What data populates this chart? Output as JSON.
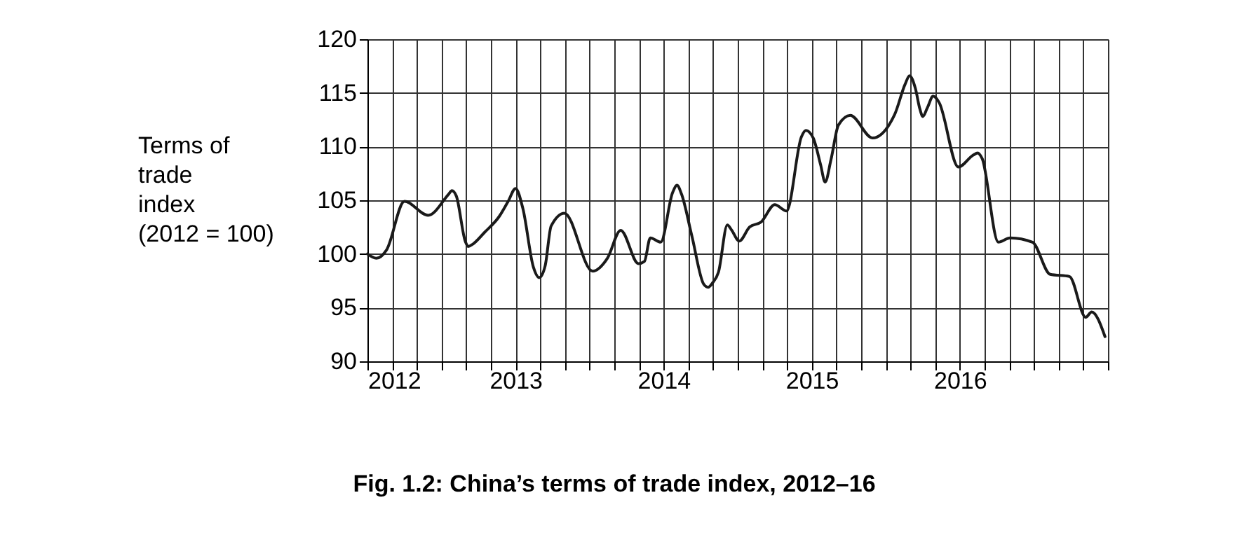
{
  "chart_data": {
    "type": "line",
    "title": "Fig. 1.2: China’s terms of trade index, 2012–16",
    "ylabel": "Terms of\ntrade\nindex\n(2012 = 100)",
    "x": [
      2012.0,
      2012.06,
      2012.13,
      2012.25,
      2012.41,
      2012.55,
      2012.57,
      2012.6,
      2012.66,
      2012.68,
      2012.71,
      2012.79,
      2012.89,
      2012.95,
      2013.0,
      2013.05,
      2013.12,
      2013.16,
      2013.2,
      2013.24,
      2013.33,
      2013.52,
      2013.62,
      2013.71,
      2013.83,
      2013.87,
      2013.91,
      2013.98,
      2014.06,
      2014.09,
      2014.12,
      2014.19,
      2014.27,
      2014.3,
      2014.33,
      2014.37,
      2014.43,
      2014.46,
      2014.51,
      2014.58,
      2014.66,
      2014.75,
      2014.83,
      2014.93,
      2014.96,
      2015.01,
      2015.06,
      2015.09,
      2015.13,
      2015.18,
      2015.26,
      2015.41,
      2015.56,
      2015.63,
      2015.66,
      2015.7,
      2015.73,
      2015.75,
      2015.78,
      2015.82,
      2015.86,
      2015.99,
      2016.09,
      2016.12,
      2016.15,
      2016.26,
      2016.34,
      2016.49,
      2016.61,
      2016.74,
      2016.85,
      2016.89,
      2016.98
    ],
    "series": [
      {
        "color": "#1a1a1a",
        "values": [
          100,
          99.6,
          100.4,
          104.9,
          103.6,
          105.6,
          105.9,
          105.4,
          101.2,
          100.7,
          100.9,
          102,
          103.5,
          104.9,
          106.1,
          104.2,
          98.8,
          97.8,
          98.9,
          102.6,
          103.8,
          98.4,
          99.6,
          102.2,
          99.1,
          99.3,
          101.5,
          101.1,
          105.7,
          106.4,
          105.6,
          101.7,
          97.2,
          96.9,
          97.3,
          98.3,
          102.7,
          102.2,
          101.2,
          102.5,
          103,
          104.6,
          104,
          110.9,
          111.5,
          110.8,
          108.3,
          106.7,
          108.8,
          112,
          112.9,
          110.8,
          113,
          115.8,
          116.6,
          115.4,
          113.5,
          112.8,
          113.6,
          114.7,
          114.1,
          108.1,
          109.2,
          109.4,
          108.9,
          101.1,
          101.5,
          101.1,
          98.1,
          97.9,
          94.1,
          94.6,
          92.3
        ]
      }
    ],
    "xlim": [
      2012,
      2017
    ],
    "xticks": [
      2012,
      {
        "value": 2012.1667,
        "label": null
      },
      {
        "value": 2012.3333,
        "label": null
      },
      {
        "value": 2012.5,
        "label": null
      },
      {
        "value": 2012.6667,
        "label": null
      },
      {
        "value": 2012.8333,
        "label": null
      },
      2013,
      {
        "value": 2013.1667,
        "label": null
      },
      {
        "value": 2013.3333,
        "label": null
      },
      {
        "value": 2013.5,
        "label": null
      },
      {
        "value": 2013.6667,
        "label": null
      },
      {
        "value": 2013.8333,
        "label": null
      },
      2014,
      {
        "value": 2014.1667,
        "label": null
      },
      {
        "value": 2014.3333,
        "label": null
      },
      {
        "value": 2014.5,
        "label": null
      },
      {
        "value": 2014.6667,
        "label": null
      },
      {
        "value": 2014.8333,
        "label": null
      },
      2015,
      {
        "value": 2015.1667,
        "label": null
      },
      {
        "value": 2015.3333,
        "label": null
      },
      {
        "value": 2015.5,
        "label": null
      },
      {
        "value": 2015.6667,
        "label": null
      },
      {
        "value": 2015.8333,
        "label": null
      },
      2016,
      {
        "value": 2016.1667,
        "label": null
      },
      {
        "value": 2016.3333,
        "label": null
      },
      {
        "value": 2016.5,
        "label": null
      },
      {
        "value": 2016.6667,
        "label": null
      },
      {
        "value": 2016.8333,
        "label": null
      },
      {
        "value": 2017,
        "label": null
      }
    ],
    "ylim": [
      90,
      120
    ],
    "yticks": [
      90,
      95,
      100,
      105,
      110,
      115,
      120
    ],
    "grid": true,
    "marker": "none",
    "line_style": "solid"
  }
}
